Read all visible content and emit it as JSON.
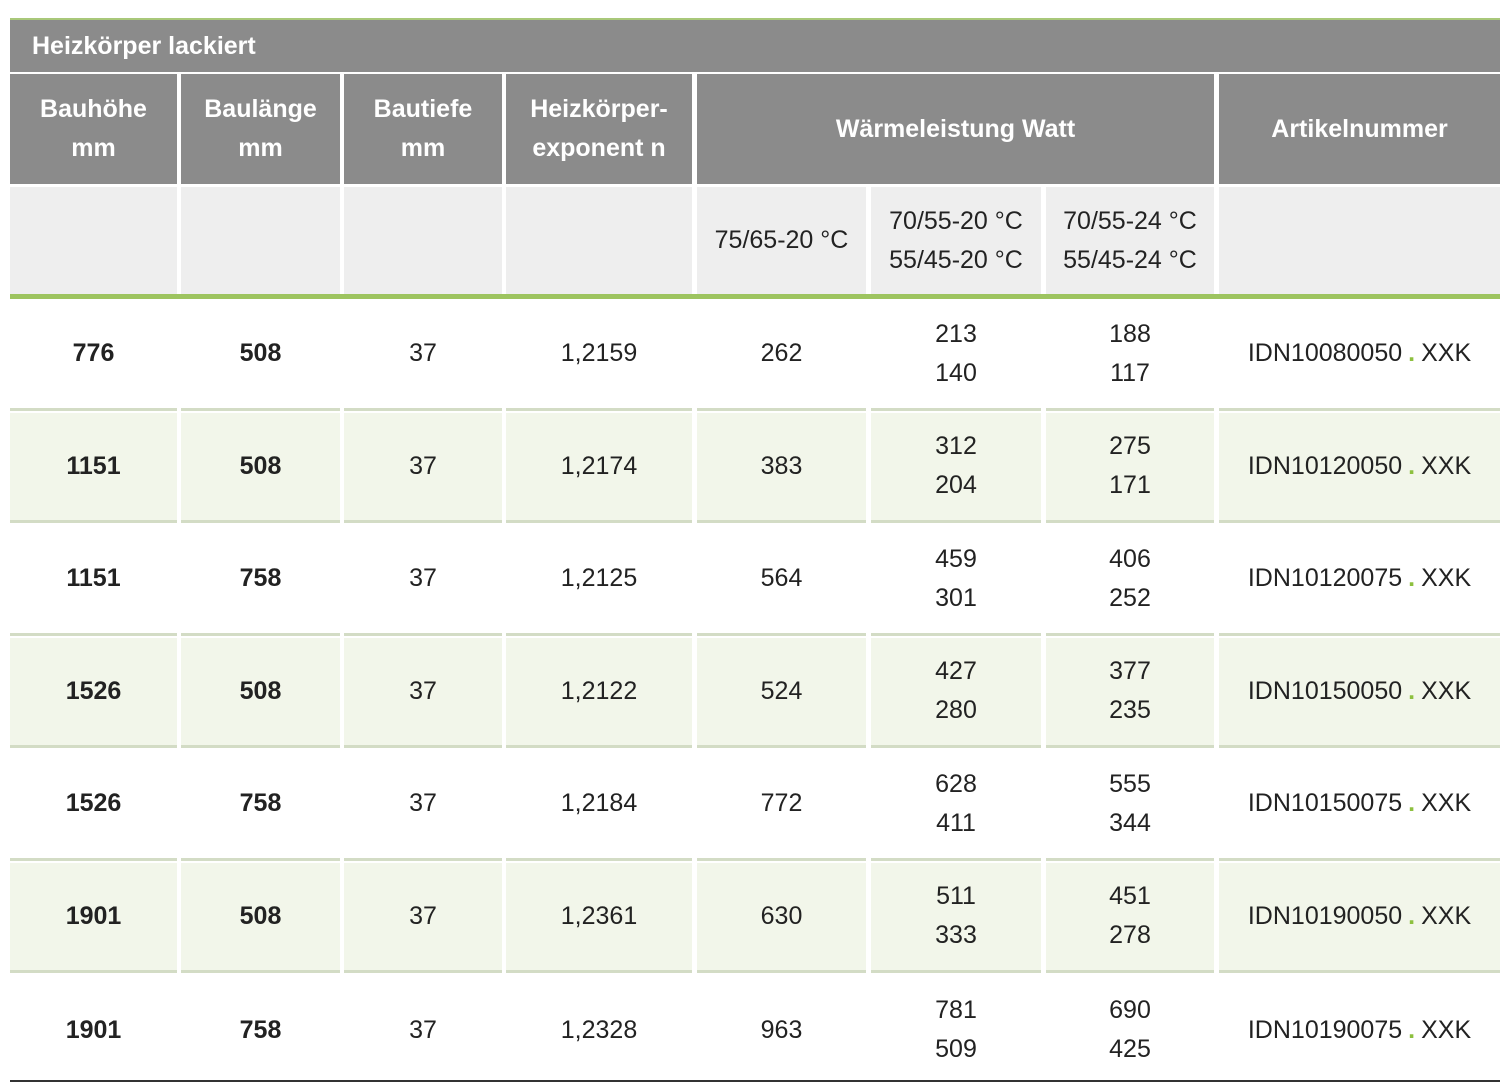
{
  "table": {
    "title": "Heizkörper lackiert",
    "header": [
      [
        "Bauhöhe",
        "mm"
      ],
      [
        "Baulänge",
        "mm"
      ],
      [
        "Bautiefe",
        "mm"
      ],
      [
        "Heizkörper-",
        "exponent n"
      ]
    ],
    "group_header": "Wärmeleistung Watt",
    "article_header": "Artikelnummer",
    "subheader": [
      [
        "75/65-20 °C"
      ],
      [
        "70/55-20 °C",
        "55/45-20 °C"
      ],
      [
        "70/55-24 °C",
        "55/45-24 °C"
      ]
    ],
    "rows": [
      {
        "cells": [
          "776",
          "508",
          "37",
          "1,2159",
          [
            "262"
          ],
          [
            "213",
            "140"
          ],
          [
            "188",
            "117"
          ]
        ],
        "article": [
          "IDN10080050",
          ".",
          "XXK"
        ]
      },
      {
        "cells": [
          "1151",
          "508",
          "37",
          "1,2174",
          [
            "383"
          ],
          [
            "312",
            "204"
          ],
          [
            "275",
            "171"
          ]
        ],
        "article": [
          "IDN10120050",
          ".",
          "XXK"
        ]
      },
      {
        "cells": [
          "1151",
          "758",
          "37",
          "1,2125",
          [
            "564"
          ],
          [
            "459",
            "301"
          ],
          [
            "406",
            "252"
          ]
        ],
        "article": [
          "IDN10120075",
          ".",
          "XXK"
        ]
      },
      {
        "cells": [
          "1526",
          "508",
          "37",
          "1,2122",
          [
            "524"
          ],
          [
            "427",
            "280"
          ],
          [
            "377",
            "235"
          ]
        ],
        "article": [
          "IDN10150050",
          ".",
          "XXK"
        ]
      },
      {
        "cells": [
          "1526",
          "758",
          "37",
          "1,2184",
          [
            "772"
          ],
          [
            "628",
            "411"
          ],
          [
            "555",
            "344"
          ]
        ],
        "article": [
          "IDN10150075",
          ".",
          "XXK"
        ]
      },
      {
        "cells": [
          "1901",
          "508",
          "37",
          "1,2361",
          [
            "630"
          ],
          [
            "511",
            "333"
          ],
          [
            "451",
            "278"
          ]
        ],
        "article": [
          "IDN10190050",
          ".",
          "XXK"
        ]
      },
      {
        "cells": [
          "1901",
          "758",
          "37",
          "1,2328",
          [
            "963"
          ],
          [
            "781",
            "509"
          ],
          [
            "690",
            "425"
          ]
        ],
        "article": [
          "IDN10190075",
          ".",
          "XXK"
        ]
      }
    ]
  }
}
